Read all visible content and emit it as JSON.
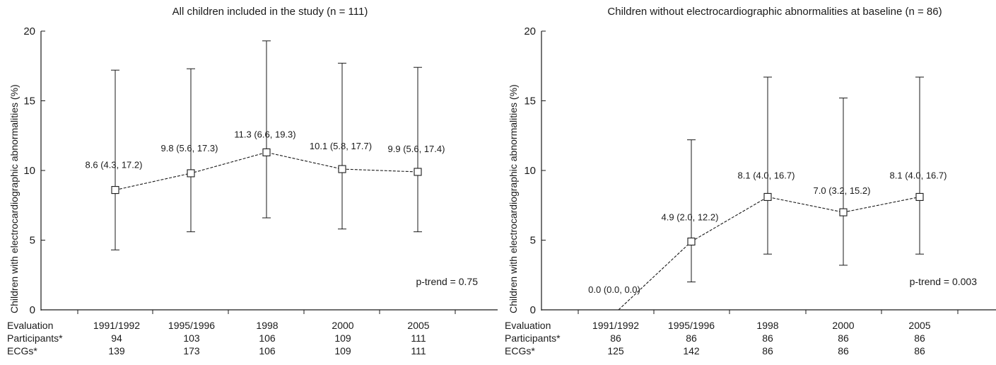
{
  "chart_data": [
    {
      "type": "line",
      "title": "All children included in the study (n = 111)",
      "ylabel": "Children with electrocardiographic abnormalities (%)",
      "ylim": [
        0,
        20
      ],
      "yticks": [
        0,
        5,
        10,
        15,
        20
      ],
      "categories": [
        "1991/1992",
        "1995/1996",
        "1998",
        "2000",
        "2005"
      ],
      "values": [
        8.6,
        9.8,
        11.3,
        10.1,
        9.9
      ],
      "ci_lower": [
        4.3,
        5.6,
        6.6,
        5.8,
        5.6
      ],
      "ci_upper": [
        17.2,
        17.3,
        19.3,
        17.7,
        17.4
      ],
      "point_labels": [
        "8.6 (4.3, 17.2)",
        "9.8 (5.6, 17.3)",
        "11.3 (6.6, 19.3)",
        "10.1 (5.8, 17.7)",
        "9.9 (5.6, 17.4)"
      ],
      "annotation": "p-trend = 0.75",
      "line_style": "dashed",
      "marker": "open-square",
      "table": {
        "row_labels": [
          "Evaluation",
          "Participants*",
          "ECGs*"
        ],
        "participants": [
          "94",
          "103",
          "106",
          "109",
          "111"
        ],
        "ecgs": [
          "139",
          "173",
          "106",
          "109",
          "111"
        ]
      }
    },
    {
      "type": "line",
      "title": "Children without electrocardiographic abnormalities at baseline (n = 86)",
      "ylabel": "Children with electrocardiographic abnormalities (%)",
      "ylim": [
        0,
        20
      ],
      "yticks": [
        0,
        5,
        10,
        15,
        20
      ],
      "categories": [
        "1991/1992",
        "1995/1996",
        "1998",
        "2000",
        "2005"
      ],
      "values": [
        0.0,
        4.9,
        8.1,
        7.0,
        8.1
      ],
      "ci_lower": [
        0.0,
        2.0,
        4.0,
        3.2,
        4.0
      ],
      "ci_upper": [
        0.0,
        12.2,
        16.7,
        15.2,
        16.7
      ],
      "point_labels": [
        "0.0 (0.0, 0.0)",
        "4.9 (2.0, 12.2)",
        "8.1 (4.0, 16.7)",
        "7.0 (3.2, 15.2)",
        "8.1 (4.0, 16.7)"
      ],
      "annotation": "p-trend = 0.003",
      "line_style": "dashed",
      "marker": "open-square",
      "table": {
        "row_labels": [
          "Evaluation",
          "Participants*",
          "ECGs*"
        ],
        "participants": [
          "86",
          "86",
          "86",
          "86",
          "86"
        ],
        "ecgs": [
          "125",
          "142",
          "86",
          "86",
          "86"
        ]
      }
    }
  ],
  "colors": {
    "ink": "#1a1a1a",
    "marker_fill": "#ffffff"
  }
}
